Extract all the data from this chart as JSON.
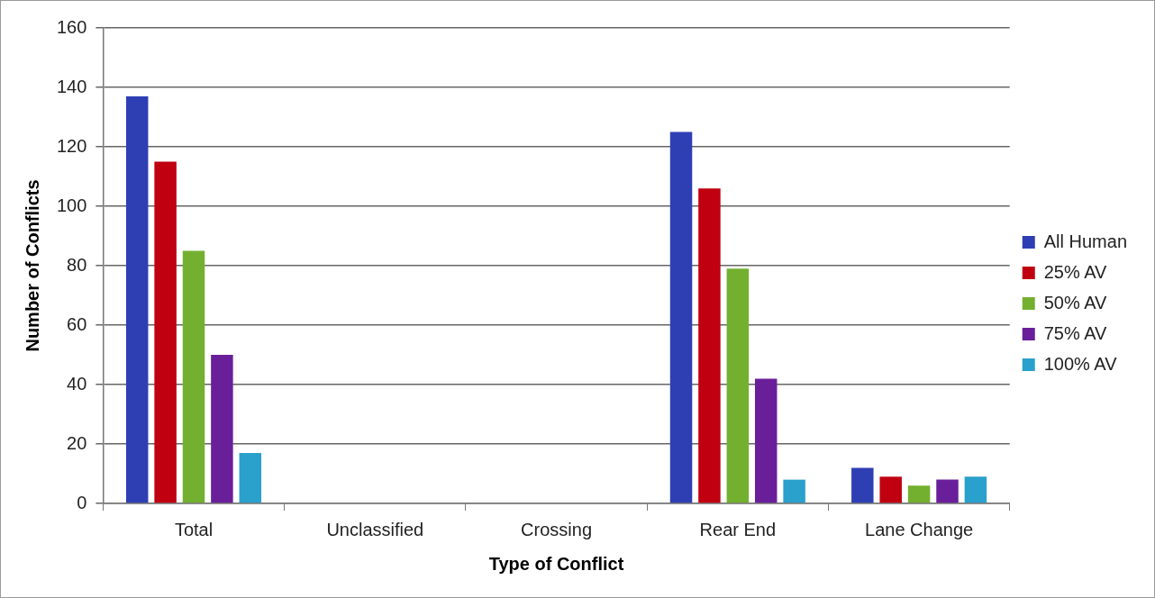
{
  "chart_data": {
    "type": "bar",
    "xlabel": "Type of Conflict",
    "ylabel": "Number of Conflicts",
    "categories": [
      "Total",
      "Unclassified",
      "Crossing",
      "Rear End",
      "Lane Change"
    ],
    "series": [
      {
        "name": "All Human",
        "color": "#2e3fb4",
        "values": [
          137,
          0,
          0,
          125,
          12
        ]
      },
      {
        "name": "25% AV",
        "color": "#c00010",
        "values": [
          115,
          0,
          0,
          106,
          9
        ]
      },
      {
        "name": "50% AV",
        "color": "#74b030",
        "values": [
          85,
          0,
          0,
          79,
          6
        ]
      },
      {
        "name": "75% AV",
        "color": "#6a1f9a",
        "values": [
          50,
          0,
          0,
          42,
          8
        ]
      },
      {
        "name": "100% AV",
        "color": "#2aa0cc",
        "values": [
          17,
          0,
          0,
          8,
          9
        ]
      }
    ],
    "ylim": [
      0,
      160
    ],
    "yticks": [
      0,
      20,
      40,
      60,
      80,
      100,
      120,
      140,
      160
    ],
    "grid": "y",
    "legend": "right"
  }
}
